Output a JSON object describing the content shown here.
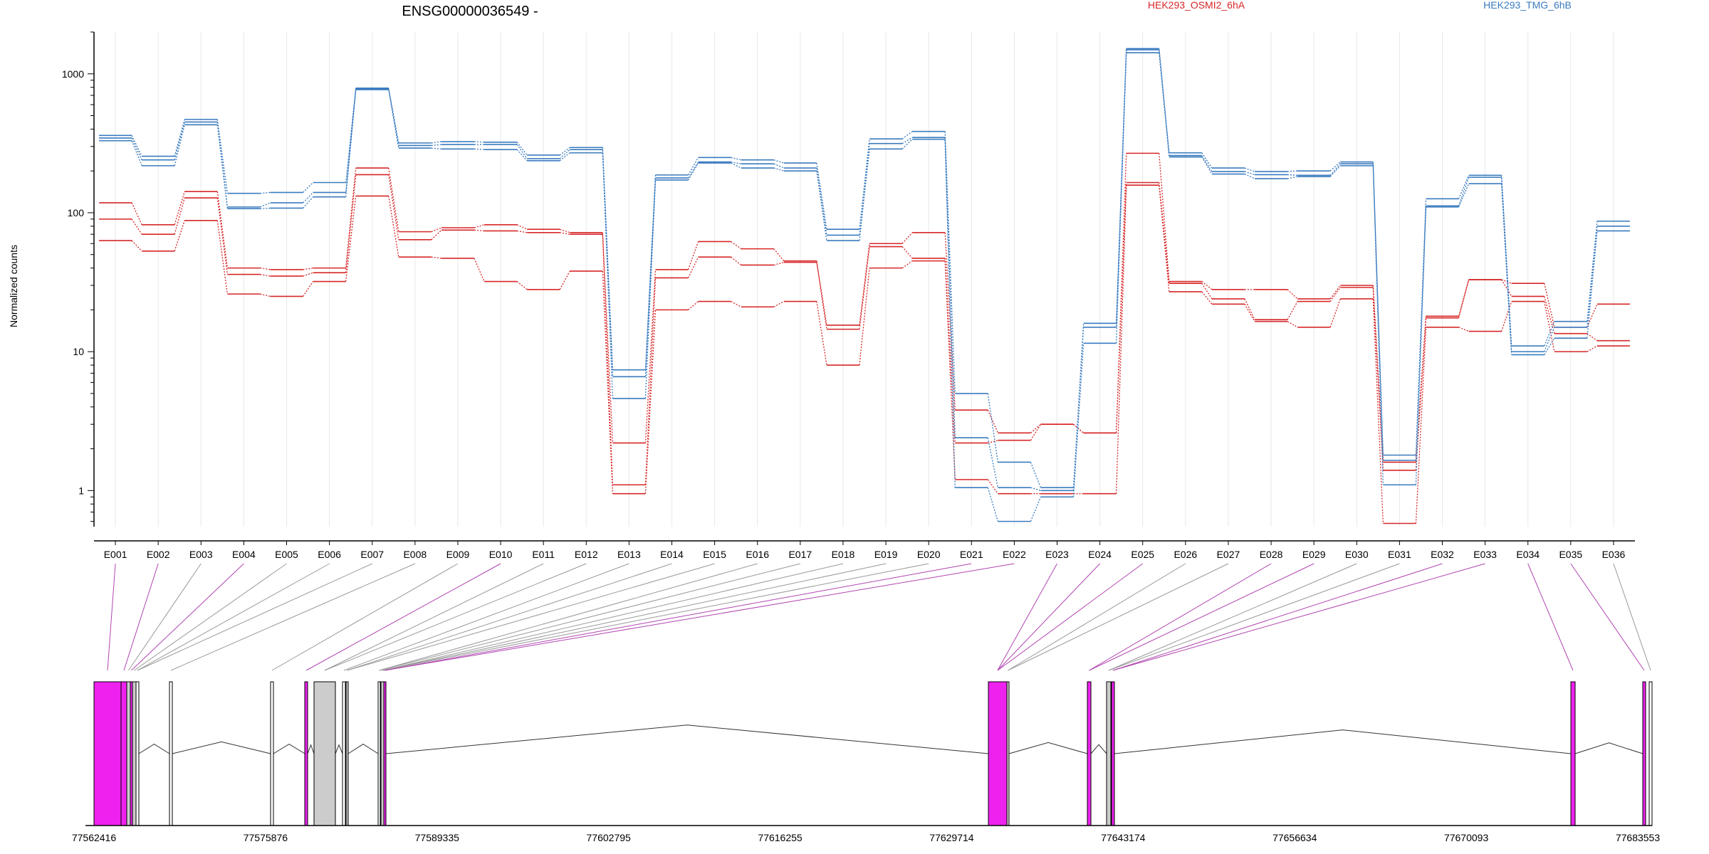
{
  "chart_data": {
    "type": "line",
    "title": "ENSG00000036549 -",
    "ylabel": "Normalized counts",
    "y_scale": "log",
    "ylim": [
      0.55,
      2000
    ],
    "y_ticks": [
      1,
      10,
      100,
      1000
    ],
    "y_tick_labels": [
      "1",
      "10",
      "100",
      "1000"
    ],
    "grid": "vertical",
    "legend_position": "top-right",
    "categories": [
      "E001",
      "E002",
      "E003",
      "E004",
      "E005",
      "E006",
      "E007",
      "E008",
      "E009",
      "E010",
      "E011",
      "E012",
      "E013",
      "E014",
      "E015",
      "E016",
      "E017",
      "E018",
      "E019",
      "E020",
      "E021",
      "E022",
      "E023",
      "E024",
      "E025",
      "E026",
      "E027",
      "E028",
      "E029",
      "E030",
      "E031",
      "E032",
      "E033",
      "E034",
      "E035",
      "E036"
    ],
    "groups": [
      {
        "name": "HEK293_OSMI2_6hA",
        "color": "#d62728"
      },
      {
        "name": "HEK293_TMG_6hB",
        "color": "#3a7bbf"
      }
    ],
    "series": [
      {
        "group": 0,
        "values": [
          118,
          82,
          142,
          40,
          39,
          40,
          210,
          73,
          78,
          82,
          76,
          72,
          2.2,
          39,
          62,
          55,
          45,
          15.5,
          60,
          72,
          3.8,
          2.6,
          3.0,
          2.6,
          268,
          32,
          28,
          28,
          24,
          30,
          1.6,
          18,
          33,
          31,
          15,
          22
        ]
      },
      {
        "group": 0,
        "values": [
          90,
          70,
          128,
          36,
          35,
          37,
          188,
          64,
          75,
          74,
          72,
          70,
          1.1,
          34,
          48,
          42,
          44,
          14.5,
          57,
          47,
          2.2,
          2.3,
          3.0,
          2.6,
          165,
          31,
          24,
          17,
          23,
          29,
          1.4,
          17.5,
          33,
          25,
          13.5,
          12
        ]
      },
      {
        "group": 0,
        "values": [
          63,
          53,
          88,
          26,
          25,
          32,
          132,
          48,
          47,
          32,
          28,
          38,
          0.95,
          20,
          23,
          21,
          23,
          8,
          40,
          45,
          1.2,
          0.95,
          0.95,
          0.95,
          158,
          27,
          22,
          16.5,
          15,
          24,
          0.58,
          15,
          14,
          23,
          10,
          11
        ]
      },
      {
        "group": 1,
        "values": [
          360,
          255,
          470,
          138,
          140,
          165,
          790,
          318,
          325,
          322,
          260,
          295,
          7.4,
          187,
          250,
          240,
          228,
          76,
          340,
          385,
          5.0,
          1.6,
          1.05,
          16,
          1520,
          270,
          210,
          198,
          200,
          232,
          1.8,
          126,
          186,
          11,
          16.5,
          87
        ]
      },
      {
        "group": 1,
        "values": [
          345,
          240,
          450,
          110,
          118,
          140,
          780,
          305,
          310,
          310,
          245,
          285,
          6.6,
          178,
          232,
          225,
          210,
          69,
          315,
          348,
          2.4,
          1.05,
          1.0,
          15,
          1490,
          258,
          198,
          188,
          186,
          225,
          1.65,
          112,
          180,
          10,
          15,
          80
        ]
      },
      {
        "group": 1,
        "values": [
          330,
          218,
          430,
          107,
          108,
          130,
          770,
          292,
          288,
          285,
          237,
          270,
          4.6,
          172,
          228,
          210,
          200,
          63,
          288,
          338,
          1.05,
          0.6,
          0.9,
          11.5,
          1420,
          252,
          190,
          176,
          182,
          218,
          1.1,
          110,
          162,
          9.5,
          12.5,
          74
        ]
      }
    ],
    "genome_track": {
      "tick_labels": [
        "77562416",
        "77575876",
        "77589335",
        "77602795",
        "77616255",
        "77629714",
        "77643174",
        "77656634",
        "77670093",
        "77683553"
      ],
      "exon_fill": {
        "magenta": "#ee22ee",
        "grey": "#cccccc",
        "white": "#ffffff"
      }
    }
  }
}
